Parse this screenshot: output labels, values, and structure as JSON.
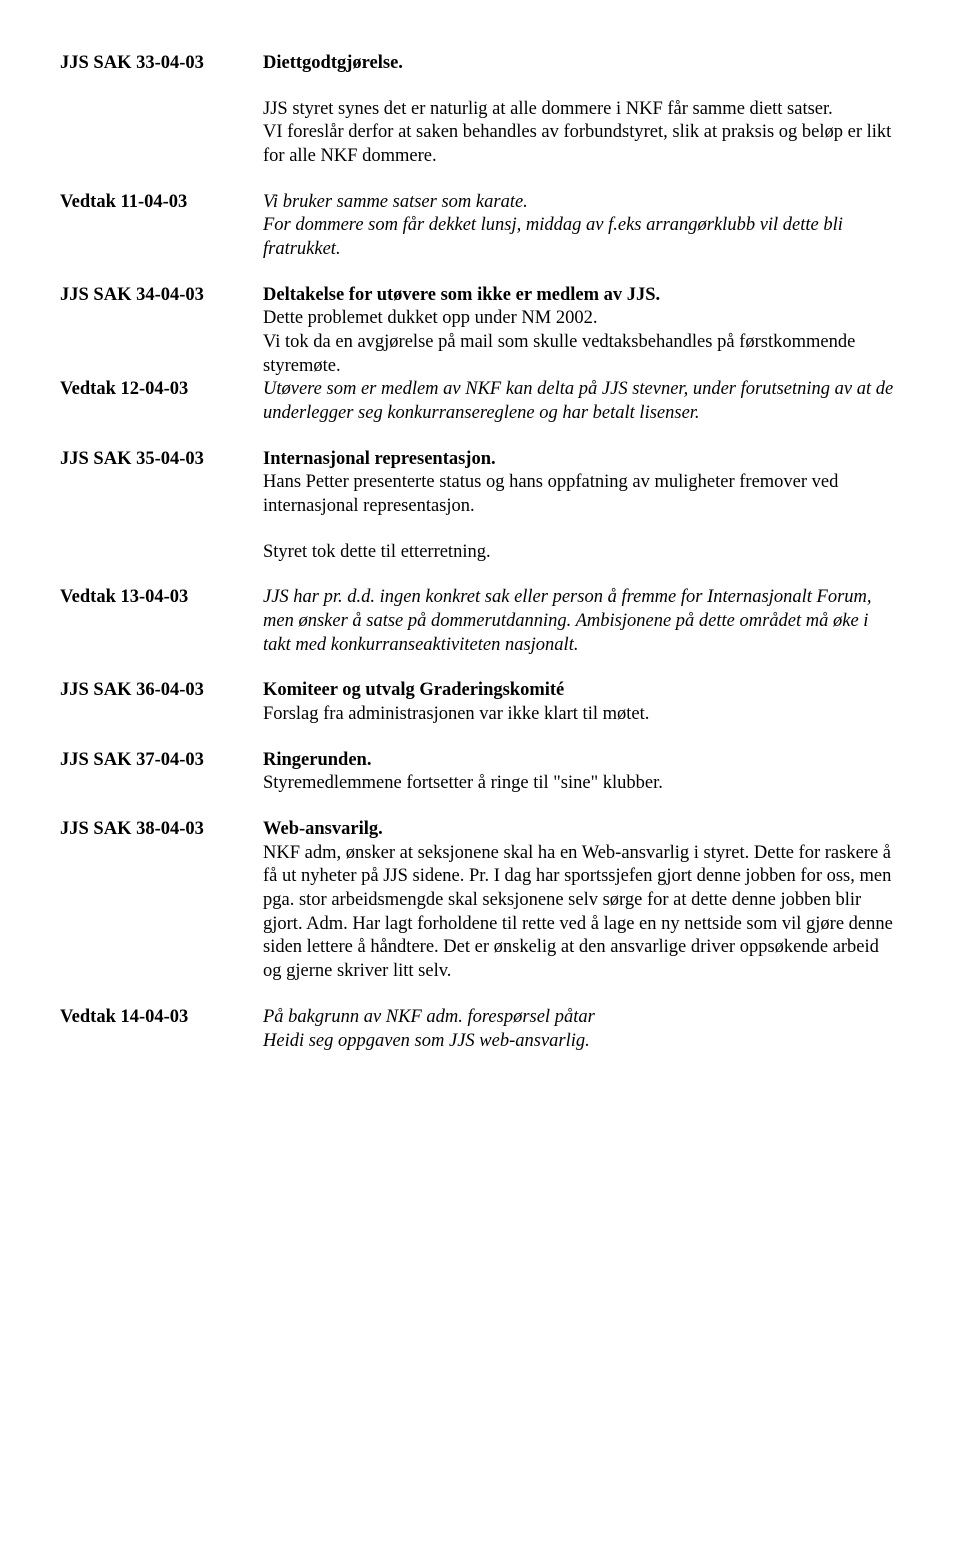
{
  "s33": {
    "case_label": "JJS SAK 33-04-03",
    "title": "Diettgodtgjørelse.",
    "para1": "JJS styret synes det er naturlig at alle dommere i NKF får samme diett satser.",
    "para2": "VI foreslår derfor at saken behandles av forbundstyret, slik at praksis og beløp er likt for alle NKF dommere.",
    "vedtak_label": "Vedtak 11-04-03",
    "vedtak_p1": "Vi bruker samme satser som karate.",
    "vedtak_p2": "For dommere som får dekket lunsj, middag av f.eks arrangørklubb  vil dette bli fratrukket."
  },
  "s34": {
    "case_label": "JJS SAK  34-04-03",
    "title": "Deltakelse for utøvere som ikke er medlem av JJS.",
    "p1": "Dette problemet dukket opp under NM 2002.",
    "p2": "Vi tok da en avgjørelse på mail som skulle vedtaksbehandles på førstkommende styremøte.",
    "vedtak_label": "Vedtak 12-04-03",
    "vedtak_p": "Utøvere som er medlem av NKF kan delta på JJS stevner, under forutsetning av at de underlegger seg konkurransereglene og har betalt lisenser."
  },
  "s35": {
    "case_label": "JJS SAK 35-04-03",
    "title": "Internasjonal representasjon.",
    "p1": "Hans Petter presenterte status og hans oppfatning av muligheter fremover ved internasjonal representasjon.",
    "p2": "Styret tok dette til etterretning.",
    "vedtak_label": "Vedtak 13-04-03",
    "vedtak_p": "JJS har pr. d.d. ingen konkret sak eller person å fremme for Internasjonalt Forum, men ønsker å satse på dommerutdanning. Ambisjonene på dette området må øke i takt med konkurranseaktiviteten nasjonalt."
  },
  "s36": {
    "case_label": "JJS SAK 36-04-03",
    "title": "Komiteer og utvalg Graderingskomité",
    "p1": "Forslag fra administrasjonen var ikke klart til møtet."
  },
  "s37": {
    "case_label": "JJS SAK 37-04-03",
    "title": "Ringerunden.",
    "p1": "Styremedlemmene fortsetter å ringe til \"sine\" klubber."
  },
  "s38": {
    "case_label": "JJS SAK 38-04-03",
    "title": "Web-ansvarilg.",
    "p1": "NKF adm, ønsker at seksjonene skal ha en Web-ansvarlig i styret. Dette for raskere å få ut nyheter på JJS sidene. Pr. I dag har sportssjefen gjort denne jobben for oss, men pga. stor arbeidsmengde skal seksjonene selv sørge for at dette denne jobben blir gjort. Adm. Har lagt forholdene til rette ved å lage en ny nettside som vil gjøre denne siden lettere å håndtere. Det er ønskelig at den ansvarlige driver oppsøkende arbeid og gjerne skriver litt selv.",
    "vedtak_label": "Vedtak 14-04-03",
    "vedtak_p1": "På bakgrunn av NKF adm. forespørsel påtar",
    "vedtak_p2": "Heidi seg oppgaven som JJS web-ansvarlig."
  }
}
